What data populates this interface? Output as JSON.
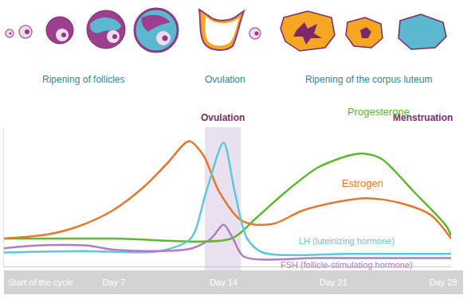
{
  "chart_data": {
    "type": "line",
    "phases": [
      "Ripening of follicles",
      "Ovulation",
      "Ripening of the corpus luteum"
    ],
    "shaded": {
      "label": "Ovulation",
      "x": [
        12.8,
        15.1
      ],
      "color": "#d9c8e3"
    },
    "end_label": "Menstruation",
    "start_label": "Start of the cycle",
    "series": [
      {
        "name": "Progesterone",
        "color": "#5cb82e",
        "x": [
          0,
          7,
          14.5,
          16,
          18,
          20,
          22.1,
          23,
          24.1,
          26.1,
          28.2,
          28.5
        ],
        "values": [
          20,
          20,
          20,
          34,
          54,
          71,
          80,
          81,
          77,
          54,
          29,
          22
        ]
      },
      {
        "name": "Estrogen",
        "color": "#e8772e",
        "x": [
          0,
          2.8,
          4.8,
          6.9,
          8.9,
          10.4,
          11.8,
          12.7,
          13.7,
          15,
          16,
          17.3,
          19,
          21.1,
          23.1,
          25.1,
          27.2,
          28.5
        ],
        "values": [
          20,
          23,
          29,
          40,
          57,
          74,
          90,
          80,
          54,
          34,
          30,
          31,
          40,
          46,
          49,
          46,
          37,
          20
        ]
      },
      {
        "name": "LH (luteinizing hormone)",
        "color": "#5bc8dc",
        "x": [
          0,
          5,
          9.9,
          11.9,
          12.9,
          14,
          14.7,
          15.5,
          16.5,
          22,
          28.5
        ],
        "values": [
          10,
          11,
          11,
          20,
          54,
          89,
          54,
          20,
          10,
          9,
          9
        ]
      },
      {
        "name": "FSH (follicle-stimulatiog hormone)",
        "color": "#b07cc6",
        "x": [
          0,
          2,
          5.3,
          7,
          10,
          12,
          13.2,
          14,
          14.6,
          15.3,
          20,
          28.5
        ],
        "values": [
          13,
          15,
          15,
          12,
          11,
          13,
          20,
          30,
          20,
          7,
          6,
          6
        ]
      }
    ],
    "xlim": [
      0,
      28.5
    ],
    "xticks": [
      {
        "value": 7,
        "label": "Day 7"
      },
      {
        "value": 14,
        "label": "Day 14"
      },
      {
        "value": 21,
        "label": "Day 21"
      },
      {
        "value": 28,
        "label": "Day 28"
      }
    ],
    "ylim": [
      0,
      100
    ],
    "yticks": [],
    "grid": false,
    "tick_labels": "x"
  }
}
